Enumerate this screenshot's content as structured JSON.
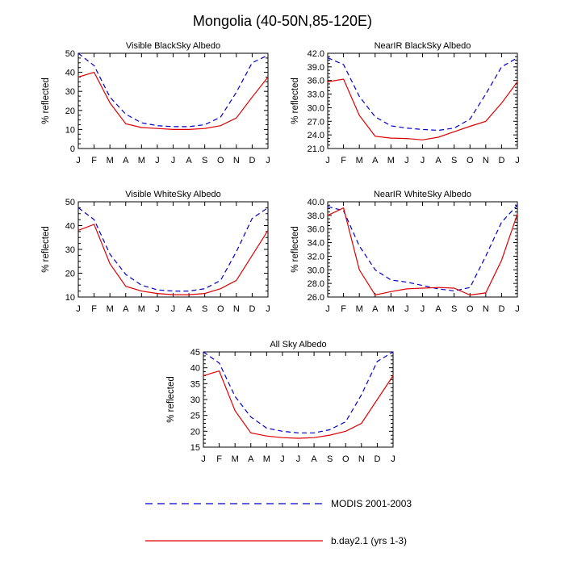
{
  "title": "Mongolia (40-50N,85-120E)",
  "legend": [
    {
      "name": "MODIS 2001-2003",
      "color": "#0000cc",
      "style": "dashed"
    },
    {
      "name": "b.day2.1 (yrs 1-3)",
      "color": "#dd0000",
      "style": "solid"
    }
  ],
  "chart_data": [
    {
      "type": "line",
      "title": "Visible BlackSky Albedo",
      "ylabel": "% reflected",
      "ylim": [
        0,
        50
      ],
      "yticks": [
        0,
        10,
        20,
        30,
        40,
        50
      ],
      "ytick_labels": [
        "0",
        "10",
        "20",
        "30",
        "40",
        "50"
      ],
      "categories": [
        "J",
        "F",
        "M",
        "A",
        "M",
        "J",
        "J",
        "A",
        "S",
        "O",
        "N",
        "D",
        "J"
      ],
      "series": [
        {
          "name": "MODIS 2001-2003",
          "values": [
            50,
            43.5,
            27,
            18,
            13.5,
            12,
            11.5,
            11.5,
            12.5,
            16.5,
            29.5,
            45,
            49
          ]
        },
        {
          "name": "b.day2.1 (yrs 1-3)",
          "values": [
            37.5,
            40,
            24,
            13,
            11,
            10.5,
            10,
            10,
            10.5,
            12,
            16,
            27,
            37.5
          ]
        }
      ]
    },
    {
      "type": "line",
      "title": "NearIR BlackSky Albedo",
      "ylabel": "% reflected",
      "ylim": [
        21,
        42
      ],
      "yticks": [
        21,
        24,
        27,
        30,
        33,
        36,
        39,
        42
      ],
      "ytick_labels": [
        "21.0",
        "24.0",
        "27.0",
        "30.0",
        "33.0",
        "36.0",
        "39.0",
        "42.0"
      ],
      "categories": [
        "J",
        "F",
        "M",
        "A",
        "M",
        "J",
        "J",
        "A",
        "S",
        "O",
        "N",
        "D",
        "J"
      ],
      "series": [
        {
          "name": "MODIS 2001-2003",
          "values": [
            41,
            39.5,
            32.5,
            28,
            26,
            25.5,
            25.2,
            25,
            25.5,
            27.5,
            33,
            39,
            41
          ]
        },
        {
          "name": "b.day2.1 (yrs 1-3)",
          "values": [
            35.7,
            36.3,
            28.3,
            23.7,
            23.3,
            23.2,
            22.9,
            23.5,
            24.7,
            25.9,
            27,
            31,
            35.7
          ]
        }
      ]
    },
    {
      "type": "line",
      "title": "Visible WhiteSky Albedo",
      "ylabel": "% reflected",
      "ylim": [
        10,
        50
      ],
      "yticks": [
        10,
        20,
        30,
        40,
        50
      ],
      "ytick_labels": [
        "10",
        "20",
        "30",
        "40",
        "50"
      ],
      "categories": [
        "J",
        "F",
        "M",
        "A",
        "M",
        "J",
        "J",
        "A",
        "S",
        "O",
        "N",
        "D",
        "J"
      ],
      "series": [
        {
          "name": "MODIS 2001-2003",
          "values": [
            47.5,
            42.5,
            28,
            19.5,
            15,
            13,
            12.5,
            12.5,
            13.5,
            17,
            29,
            43,
            47.5
          ]
        },
        {
          "name": "b.day2.1 (yrs 1-3)",
          "values": [
            38,
            40.5,
            24,
            14.5,
            12.5,
            11.5,
            11,
            11,
            11.5,
            13.5,
            17,
            27.5,
            38
          ]
        }
      ]
    },
    {
      "type": "line",
      "title": "NearIR WhiteSky Albedo",
      "ylabel": "% reflected",
      "ylim": [
        26,
        40
      ],
      "yticks": [
        26,
        28,
        30,
        32,
        34,
        36,
        38,
        40
      ],
      "ytick_labels": [
        "26.0",
        "28.0",
        "30.0",
        "32.0",
        "34.0",
        "36.0",
        "38.0",
        "40.0"
      ],
      "categories": [
        "J",
        "F",
        "M",
        "A",
        "M",
        "J",
        "J",
        "A",
        "S",
        "O",
        "N",
        "D",
        "J"
      ],
      "series": [
        {
          "name": "MODIS 2001-2003",
          "values": [
            39.3,
            38.7,
            33.5,
            30,
            28.5,
            28.2,
            27.7,
            27.2,
            26.9,
            27.4,
            32,
            37,
            39.5
          ]
        },
        {
          "name": "b.day2.1 (yrs 1-3)",
          "values": [
            38,
            39.1,
            30,
            26.3,
            26.8,
            27.2,
            27.3,
            27.4,
            27.3,
            26.3,
            26.6,
            31.4,
            38.2
          ]
        }
      ]
    },
    {
      "type": "line",
      "title": "All Sky Albedo",
      "ylabel": "% reflected",
      "ylim": [
        15,
        45
      ],
      "yticks": [
        15,
        20,
        25,
        30,
        35,
        40,
        45
      ],
      "ytick_labels": [
        "15",
        "20",
        "25",
        "30",
        "35",
        "40",
        "45"
      ],
      "categories": [
        "J",
        "F",
        "M",
        "A",
        "M",
        "J",
        "J",
        "A",
        "S",
        "O",
        "N",
        "D",
        "J"
      ],
      "series": [
        {
          "name": "MODIS 2001-2003",
          "values": [
            45,
            41.5,
            31,
            24.5,
            21,
            20,
            19.5,
            19.5,
            20.5,
            23,
            31.5,
            42,
            45
          ]
        },
        {
          "name": "b.day2.1 (yrs 1-3)",
          "values": [
            37.5,
            39,
            26.5,
            19.5,
            18.5,
            18,
            17.8,
            18,
            18.8,
            20,
            22.5,
            30,
            37.5
          ]
        }
      ]
    }
  ]
}
